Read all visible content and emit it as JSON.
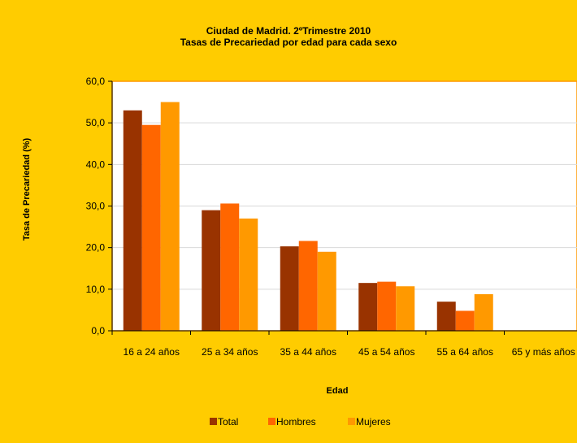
{
  "chart_data": {
    "type": "bar",
    "title": "Ciudad de Madrid. 2ºTrimestre 2010",
    "subtitle": "Tasas de Precariedad por edad para cada sexo",
    "xlabel": "Edad",
    "ylabel": "Tasa de Precariedad (%)",
    "ylim": [
      0,
      60
    ],
    "yticks": [
      "0,0",
      "10,0",
      "20,0",
      "30,0",
      "40,0",
      "50,0",
      "60,0"
    ],
    "grid": true,
    "legend_position": "bottom",
    "categories": [
      "16 a 24 años",
      "25 a 34 años",
      "35 a 44 años",
      "45 a 54 años",
      "55 a 64 años",
      "65 y más años"
    ],
    "series": [
      {
        "name": "Total",
        "color": "#993300",
        "values": [
          53.0,
          29.0,
          20.3,
          11.5,
          7.0,
          0
        ]
      },
      {
        "name": "Hombres",
        "color": "#FF6600",
        "values": [
          49.5,
          30.6,
          21.6,
          11.8,
          4.8,
          0
        ]
      },
      {
        "name": "Mujeres",
        "color": "#FF9900",
        "values": [
          55.0,
          27.0,
          19.0,
          10.7,
          8.8,
          0
        ]
      }
    ]
  },
  "colors": {
    "background": "#FFCC00",
    "plot_background": "#FFFFFF",
    "plot_border": "#FF9900",
    "gridline": "#D9D9D9"
  }
}
